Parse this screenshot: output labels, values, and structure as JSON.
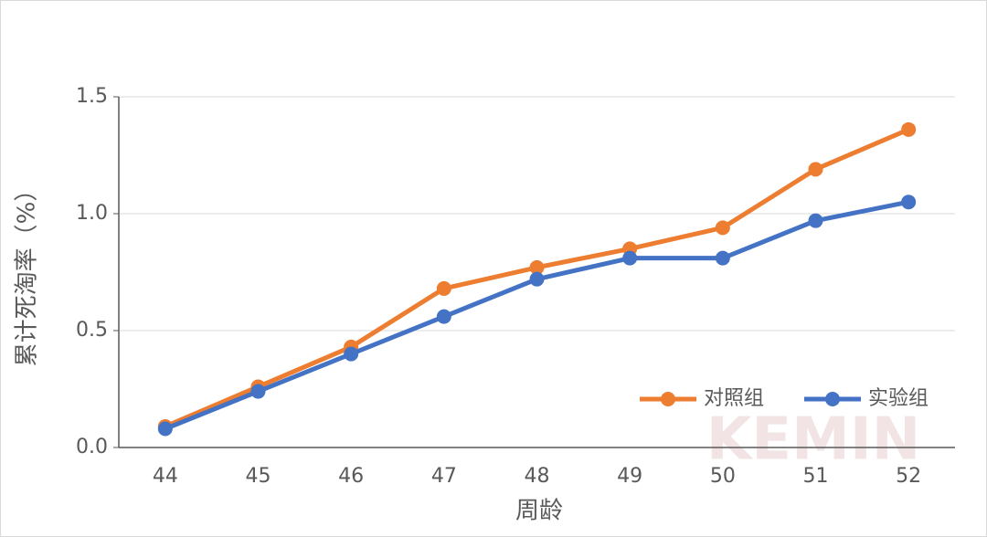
{
  "chart_data": {
    "type": "line",
    "watermark": "KEMIN",
    "x_label": "周龄",
    "y_label": "累计死淘率（%）",
    "categories": [
      "44",
      "45",
      "46",
      "47",
      "48",
      "49",
      "50",
      "51",
      "52"
    ],
    "series": [
      {
        "name": "对照组",
        "color": "#ed7d31",
        "values": [
          0.09,
          0.26,
          0.43,
          0.68,
          0.77,
          0.85,
          0.94,
          1.19,
          1.36
        ]
      },
      {
        "name": "实验组",
        "color": "#4472c4",
        "values": [
          0.08,
          0.24,
          0.4,
          0.56,
          0.72,
          0.81,
          0.81,
          0.97,
          1.05
        ]
      }
    ],
    "ylim": [
      0,
      1.5
    ],
    "yticks": [
      {
        "value": 0,
        "label": "0.0"
      },
      0.5,
      {
        "value": 1,
        "label": "1.0"
      },
      1.5
    ],
    "grid": true,
    "legend": "bottom-right"
  }
}
